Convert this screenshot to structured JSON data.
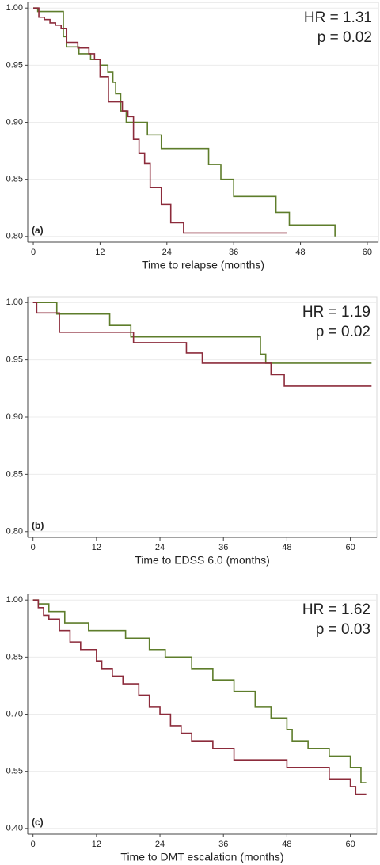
{
  "chart_data": [
    {
      "type": "line",
      "step": true,
      "annotations": [
        "HR = 1.31",
        "p = 0.02"
      ],
      "panel_label": "(a)",
      "x_label": "Time to relapse (months)",
      "xlim": [
        -1,
        62
      ],
      "xticks": [
        0,
        12,
        24,
        36,
        48,
        60
      ],
      "ylim": [
        0.795,
        1.005
      ],
      "yticks": [
        {
          "value": 0.8,
          "label": "0.80"
        },
        0.85,
        {
          "value": 0.9,
          "label": "0.90"
        },
        0.95,
        {
          "value": 1,
          "label": "1.00"
        }
      ],
      "grid": true,
      "series": [
        {
          "color": "#5e7d2b",
          "x": [
            0,
            0.8,
            5.4,
            6,
            8.2,
            10.3,
            12,
            13.4,
            14.3,
            14.8,
            15.7,
            16.7,
            20.5,
            23,
            31.5,
            33.7,
            36,
            43.6,
            46,
            54.2
          ],
          "values": [
            1,
            0.997,
            0.975,
            0.966,
            0.96,
            0.955,
            0.95,
            0.944,
            0.935,
            0.925,
            0.91,
            0.9,
            0.889,
            0.877,
            0.863,
            0.85,
            0.835,
            0.821,
            0.81,
            0.8
          ]
        },
        {
          "color": "#8c2b3b",
          "x": [
            0,
            1,
            2,
            3,
            4,
            5,
            6,
            8,
            10,
            11,
            12,
            13.5,
            16,
            17,
            18,
            19,
            20,
            21,
            23,
            24.7,
            27,
            45.5
          ],
          "values": [
            1,
            0.992,
            0.99,
            0.987,
            0.985,
            0.982,
            0.97,
            0.965,
            0.96,
            0.955,
            0.94,
            0.918,
            0.91,
            0.905,
            0.885,
            0.873,
            0.864,
            0.843,
            0.828,
            0.812,
            0.803,
            0.803
          ]
        }
      ]
    },
    {
      "type": "line",
      "step": true,
      "annotations": [
        "HR = 1.19",
        "p = 0.02"
      ],
      "panel_label": "(b)",
      "x_label": "Time to EDSS 6.0 (months)",
      "xlim": [
        -1,
        65
      ],
      "xticks": [
        0,
        12,
        24,
        36,
        48,
        60
      ],
      "ylim": [
        0.795,
        1.005
      ],
      "yticks": [
        {
          "value": 0.8,
          "label": "0.80"
        },
        0.85,
        {
          "value": 0.9,
          "label": "0.90"
        },
        0.95,
        {
          "value": 1,
          "label": "1.00"
        }
      ],
      "grid": true,
      "series": [
        {
          "color": "#5e7d2b",
          "x": [
            0,
            4.5,
            14.5,
            18.5,
            43,
            44,
            64
          ],
          "values": [
            1,
            0.99,
            0.98,
            0.97,
            0.955,
            0.947,
            0.947
          ]
        },
        {
          "color": "#8c2b3b",
          "x": [
            0,
            0.7,
            5,
            19,
            29,
            32,
            45,
            47.5,
            64
          ],
          "values": [
            1,
            0.991,
            0.974,
            0.965,
            0.956,
            0.947,
            0.937,
            0.927,
            0.927
          ]
        }
      ]
    },
    {
      "type": "line",
      "step": true,
      "annotations": [
        "HR = 1.62",
        "p = 0.03"
      ],
      "panel_label": "(c)",
      "x_label": "Time to DMT escalation (months)",
      "xlim": [
        -1,
        65
      ],
      "xticks": [
        0,
        12,
        24,
        36,
        48,
        60
      ],
      "ylim": [
        0.385,
        1.015
      ],
      "yticks": [
        {
          "value": 0.4,
          "label": "0.40"
        },
        0.55,
        {
          "value": 0.7,
          "label": "0.70"
        },
        0.85,
        {
          "value": 1,
          "label": "1.00"
        }
      ],
      "grid": true,
      "series": [
        {
          "color": "#5e7d2b",
          "x": [
            0,
            1,
            3,
            6,
            10.5,
            17.5,
            22,
            25,
            30,
            34,
            38,
            42,
            45,
            48,
            49,
            52,
            56,
            60,
            62,
            63
          ],
          "values": [
            1,
            0.99,
            0.97,
            0.94,
            0.92,
            0.9,
            0.87,
            0.85,
            0.82,
            0.79,
            0.76,
            0.72,
            0.69,
            0.66,
            0.63,
            0.61,
            0.59,
            0.56,
            0.52,
            0.52
          ]
        },
        {
          "color": "#8c2b3b",
          "x": [
            0,
            1,
            2,
            3,
            5,
            7,
            9,
            12,
            13,
            15,
            17,
            20,
            22,
            24,
            26,
            28,
            30,
            34,
            38,
            48,
            56,
            60,
            61,
            63
          ],
          "values": [
            1,
            0.98,
            0.96,
            0.95,
            0.92,
            0.89,
            0.87,
            0.84,
            0.82,
            0.8,
            0.78,
            0.75,
            0.72,
            0.7,
            0.67,
            0.65,
            0.63,
            0.61,
            0.58,
            0.56,
            0.53,
            0.51,
            0.49,
            0.49
          ]
        }
      ]
    }
  ]
}
